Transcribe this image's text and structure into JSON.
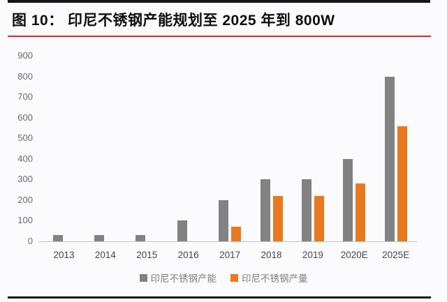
{
  "header": {
    "title": "图 10：  印尼不锈钢产能规划至 2025 年到 800W"
  },
  "chart_data": {
    "type": "bar",
    "categories": [
      "2013",
      "2014",
      "2015",
      "2016",
      "2017",
      "2018",
      "2019",
      "2020E",
      "2025E"
    ],
    "series": [
      {
        "name": "印尼不锈钢产能",
        "color": "#828282",
        "values": [
          30,
          30,
          30,
          100,
          200,
          300,
          300,
          400,
          800
        ]
      },
      {
        "name": "印尼不锈钢产量",
        "color": "#e8791e",
        "values": [
          0,
          0,
          0,
          0,
          70,
          220,
          220,
          280,
          560
        ]
      }
    ],
    "title": "",
    "xlabel": "",
    "ylabel": "",
    "ylim": [
      0,
      900
    ],
    "ytick_step": 100,
    "yticks": [
      "0",
      "100",
      "200",
      "300",
      "400",
      "500",
      "600",
      "700",
      "800",
      "900"
    ],
    "grid": false,
    "legend_position": "bottom"
  },
  "colors": {
    "accent_red": "#d7282e",
    "rule_black": "#161616",
    "bar_gray": "#828282",
    "bar_orange": "#e8791e",
    "axis_line": "#c6c6c6"
  }
}
